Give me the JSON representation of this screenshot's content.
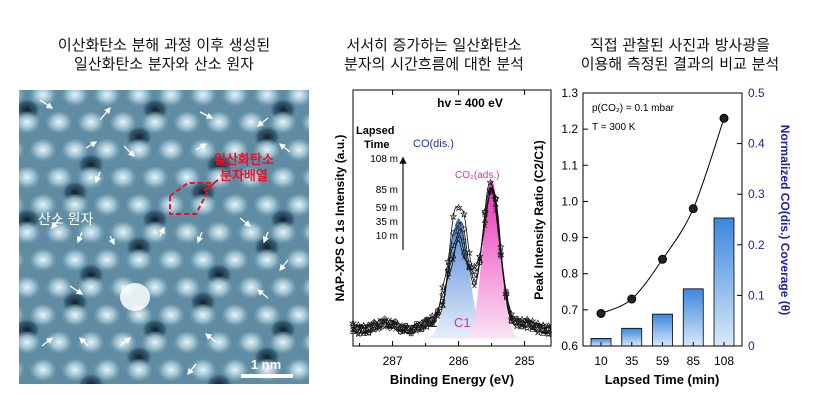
{
  "panels": {
    "stm": {
      "title": [
        "이산화탄소 분해 과정 이후 생성된",
        "일산화탄소 분자와 산소 원자"
      ],
      "label_oxygen": "산소 원자",
      "label_co_array": [
        "일산화탄소",
        "분자배열"
      ],
      "scalebar": "1 nm"
    },
    "xps": {
      "title": [
        "서서히 증가하는 일산화탄소",
        "분자의 시간흐름에 대한 분석"
      ]
    },
    "ratio": {
      "title": [
        "직접 관찰된 사진과 방사광을",
        "이용해 측정된 결과의 비교 분석"
      ]
    }
  },
  "colors": {
    "co_label": "#e8112d",
    "c1_fill": "#e830b8",
    "c2_fill": "#4f86d8",
    "bar_fill": "#3b86dc",
    "right_axis": "#1e22aa"
  },
  "chart_data": [
    {
      "type": "line",
      "title": "",
      "xlabel": "Binding Energy (eV)",
      "ylabel": "NAP-XPS C 1s Intensity (a.u.)",
      "xlim": [
        287.6,
        284.6
      ],
      "x_reversed": true,
      "xticks": [
        "287",
        "286",
        "285"
      ],
      "annotations": {
        "energy": "hv = 400 eV",
        "lapsed_header": "Lapsed",
        "lapsed_header2": "Time",
        "co_dis": "CO(dis.)",
        "co2_ads": "CO₂(ads.)",
        "c2": "C2",
        "c1": "C1"
      },
      "series": [
        {
          "name": "10 m",
          "c1_height": 0.62,
          "c2_height": 0.52
        },
        {
          "name": "35 m",
          "c1_height": 0.63,
          "c2_height": 0.55
        },
        {
          "name": "59 m",
          "c1_height": 0.64,
          "c2_height": 0.6
        },
        {
          "name": "85 m",
          "c1_height": 0.65,
          "c2_height": 0.66
        },
        {
          "name": "108 m",
          "c1_height": 0.67,
          "c2_height": 0.77
        }
      ]
    },
    {
      "type": "bar",
      "title": "",
      "categories": [
        "10",
        "35",
        "59",
        "85",
        "108"
      ],
      "xlabel": "Lapsed Time (min)",
      "ylabel": "Peak Intensity Ratio (C2/C1)",
      "ylabel_right": "Normalized CO(dis.) Coverage (θ)",
      "ylim": [
        0.6,
        1.3
      ],
      "yticks": [
        "0.6",
        "0.7",
        "0.8",
        "0.9",
        "1.0",
        "1.1",
        "1.2",
        "1.3"
      ],
      "ylim_right": [
        0,
        0.5
      ],
      "yticks_right": [
        "0",
        "0.1",
        "0.2",
        "0.3",
        "0.4",
        "0.5"
      ],
      "annotations": [
        "p(CO₂) = 0.1 mbar",
        "T = 300 K"
      ],
      "series": [
        {
          "name": "Peak Intensity Ratio",
          "type": "line",
          "values": [
            0.69,
            0.73,
            0.84,
            0.98,
            1.23
          ]
        },
        {
          "name": "Normalized CO(dis.) Coverage",
          "type": "bar",
          "values": [
            0.015,
            0.035,
            0.063,
            0.113,
            0.253
          ]
        }
      ]
    }
  ]
}
